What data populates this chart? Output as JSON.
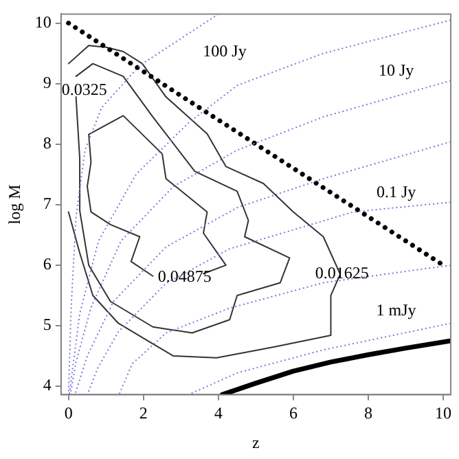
{
  "chart_data": {
    "type": "line",
    "xlabel": "z",
    "ylabel": "log M",
    "xlim": [
      -0.2,
      10.2
    ],
    "ylim": [
      3.86,
      10.15
    ],
    "xticks": [
      0,
      2,
      4,
      6,
      8,
      10
    ],
    "yticks": [
      4,
      5,
      6,
      7,
      8,
      9,
      10
    ],
    "grid": false,
    "legend": false,
    "marker": "none",
    "series": [
      {
        "color": "#7777dd",
        "line_style": "dotted",
        "x": [
          4.0,
          1.9,
          0.88,
          0.44,
          0.2,
          0.07,
          0
        ],
        "values": [
          10.15,
          9.3,
          8.6,
          7.9,
          6.8,
          5.3,
          3.86
        ]
      },
      {
        "color": "#7777dd",
        "line_style": "dotted",
        "x": [
          10.2,
          6.8,
          4.5,
          3.2,
          1.8,
          0.8,
          0.3,
          0.02
        ],
        "values": [
          10.05,
          9.5,
          8.97,
          8.35,
          7.5,
          6.4,
          5.2,
          3.86
        ]
      },
      {
        "color": "#7777dd",
        "line_style": "dotted",
        "x": [
          10.2,
          6.8,
          4.5,
          2.8,
          1.4,
          0.6,
          0.2,
          0.05
        ],
        "values": [
          9.05,
          8.45,
          7.9,
          7.3,
          6.4,
          5.3,
          4.4,
          3.86
        ]
      },
      {
        "color": "#7777dd",
        "line_style": "dotted",
        "x": [
          10.2,
          6.8,
          4.5,
          2.6,
          1.2,
          0.5,
          0.17
        ],
        "values": [
          8.04,
          7.43,
          6.95,
          6.3,
          5.4,
          4.5,
          3.86
        ]
      },
      {
        "color": "#7777dd",
        "line_style": "dotted",
        "x": [
          10.2,
          7.6,
          4.3,
          2.6,
          1.33,
          0.78,
          0.5
        ],
        "values": [
          7.04,
          6.88,
          6.27,
          5.7,
          4.9,
          4.3,
          3.86
        ]
      },
      {
        "color": "#7777dd",
        "line_style": "dotted",
        "x": [
          10.2,
          6.8,
          4.3,
          2.6,
          1.7,
          1.35
        ],
        "values": [
          6.0,
          5.71,
          5.29,
          4.88,
          4.37,
          3.86
        ]
      },
      {
        "color": "#7777dd",
        "line_style": "dotted",
        "x": [
          10.2,
          6.8,
          4.5,
          3.2
        ],
        "values": [
          5.04,
          4.6,
          4.22,
          3.86
        ]
      },
      {
        "color": "#000000",
        "line_style": "dotted",
        "x": [
          0,
          10
        ],
        "values": [
          10,
          6
        ]
      },
      {
        "color": "#000000",
        "line_style": "solid",
        "x": [
          4.1,
          5,
          6,
          7,
          8,
          9,
          10.2
        ],
        "values": [
          3.86,
          4.05,
          4.25,
          4.4,
          4.52,
          4.63,
          4.75
        ]
      },
      {
        "color": "#333333",
        "line_style": "solid",
        "x": [
          0,
          0.54,
          1.0,
          1.46,
          1.97,
          2.6,
          3.2,
          3.7,
          4.2,
          5.2,
          6.0,
          6.8,
          7.25,
          7.0,
          7.0,
          5.5,
          3.95,
          2.8,
          2.25,
          1.33,
          0.65,
          0.3,
          0
        ],
        "values": [
          9.33,
          9.63,
          9.6,
          9.53,
          9.33,
          8.78,
          8.45,
          8.17,
          7.63,
          7.35,
          6.88,
          6.47,
          5.85,
          5.5,
          4.84,
          4.65,
          4.47,
          4.5,
          4.7,
          5.04,
          5.5,
          6.2,
          6.88
        ]
      },
      {
        "color": "#333333",
        "line_style": "solid",
        "x": [
          0.2,
          0.65,
          1.46,
          2.25,
          3.37,
          4.5,
          4.8,
          4.7,
          5.9,
          5.65,
          4.5,
          4.3,
          3.3,
          2.25,
          1.12,
          0.54,
          0.3,
          0.3,
          0.2
        ],
        "values": [
          9.12,
          9.33,
          9.12,
          8.45,
          7.55,
          7.22,
          6.74,
          6.47,
          6.12,
          5.71,
          5.5,
          5.1,
          4.88,
          4.98,
          5.4,
          6.0,
          6.9,
          7.76,
          8.78
        ]
      },
      {
        "color": "#333333",
        "line_style": "solid",
        "x": [
          2.25,
          1.67,
          1.9,
          1.12,
          0.6,
          0.5,
          0.6,
          0.54,
          1.46,
          2.5,
          2.6,
          3.7,
          3.6,
          4.2,
          3.6
        ],
        "values": [
          5.82,
          6.06,
          6.47,
          6.67,
          6.88,
          7.3,
          7.7,
          8.16,
          8.47,
          7.84,
          7.43,
          6.88,
          6.53,
          6.0,
          5.86
        ]
      }
    ],
    "annotations": [
      "100 Jy",
      "10 Jy",
      "0.1 Jy",
      "1 mJy",
      "0.0325",
      {
        "text": "0.04875",
        "x": 3.1,
        "y": 5.8
      },
      {
        "text": "0.01625",
        "x": 7.3,
        "y": 5.85
      }
    ]
  }
}
